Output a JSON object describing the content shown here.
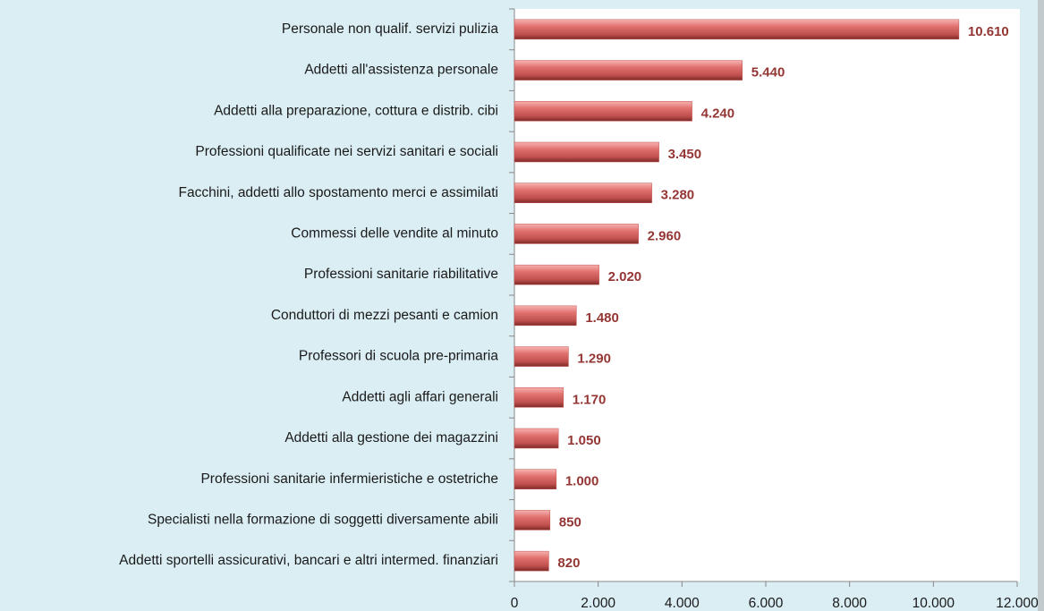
{
  "chart_data": {
    "type": "bar",
    "orientation": "horizontal",
    "categories": [
      "Personale non qualif. servizi pulizia",
      "Addetti all'assistenza personale",
      "Addetti alla preparazione, cottura e distrib. cibi",
      "Professioni qualificate nei servizi sanitari e sociali",
      "Facchini, addetti allo spostamento merci e assimilati",
      "Commessi delle vendite al minuto",
      "Professioni sanitarie riabilitative",
      "Conduttori di mezzi pesanti e camion",
      "Professori di scuola pre-primaria",
      "Addetti agli affari generali",
      "Addetti alla gestione dei magazzini",
      "Professioni sanitarie infermieristiche e ostetriche",
      "Specialisti nella formazione di soggetti diversamente abili",
      "Addetti sportelli assicurativi, bancari e altri intermed. finanziari"
    ],
    "values": [
      10610,
      5440,
      4240,
      3450,
      3280,
      2960,
      2020,
      1480,
      1290,
      1170,
      1050,
      1000,
      850,
      820
    ],
    "value_labels": [
      "10.610",
      "5.440",
      "4.240",
      "3.450",
      "3.280",
      "2.960",
      "2.020",
      "1.480",
      "1.290",
      "1.170",
      "1.050",
      "1.000",
      "850",
      "820"
    ],
    "color": "#c0504d",
    "label_color": "#943634",
    "xlim": [
      0,
      12000
    ],
    "xticks": [
      0,
      {
        "value": 2000,
        "label": "2.000"
      },
      {
        "value": 4000,
        "label": "4.000"
      },
      {
        "value": 6000,
        "label": "6.000"
      },
      {
        "value": 8000,
        "label": "8.000"
      },
      {
        "value": 10000,
        "label": "10.000"
      },
      {
        "value": 12000,
        "label": "12.000"
      }
    ]
  }
}
